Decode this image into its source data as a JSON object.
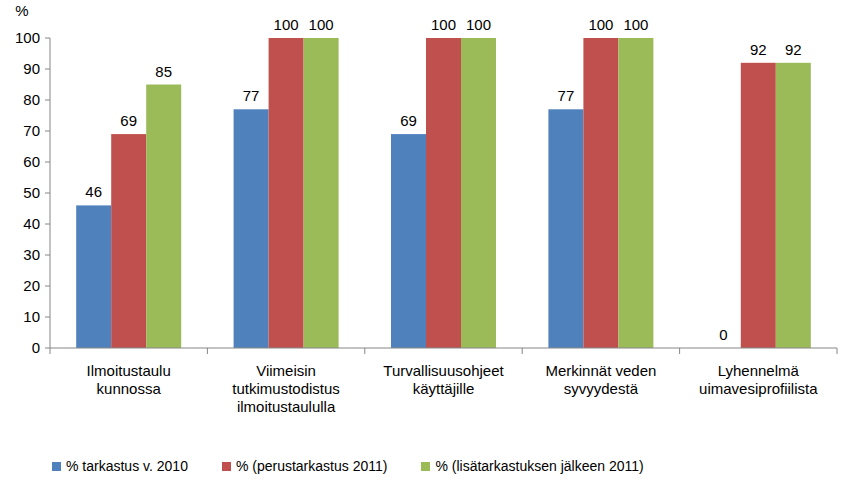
{
  "chart_data": {
    "type": "bar",
    "y_label": "%",
    "categories": [
      "Ilmoitustaulu kunnossa",
      "Viimeisin tutkimustodistus ilmoitustaululla",
      "Turvallisuusohjeet käyttäjille",
      "Merkinnät veden syvyydestä",
      "Lyhennelmä uimavesiprofiilista"
    ],
    "series": [
      {
        "name": "% tarkastus v. 2010",
        "color": "#4f81bd",
        "values": [
          46,
          77,
          69,
          77,
          0
        ]
      },
      {
        "name": "% (perustarkastus 2011)",
        "color": "#c0504d",
        "values": [
          69,
          100,
          100,
          100,
          92
        ]
      },
      {
        "name": "% (lisätarkastuksen jälkeen 2011)",
        "color": "#9bbb59",
        "values": [
          85,
          100,
          100,
          100,
          92
        ]
      }
    ],
    "ylim": [
      0,
      100
    ],
    "yticks": [
      0,
      10,
      20,
      30,
      40,
      50,
      60,
      70,
      80,
      90,
      100
    ],
    "grid": false,
    "legend": "bottom",
    "data_labels": true
  }
}
